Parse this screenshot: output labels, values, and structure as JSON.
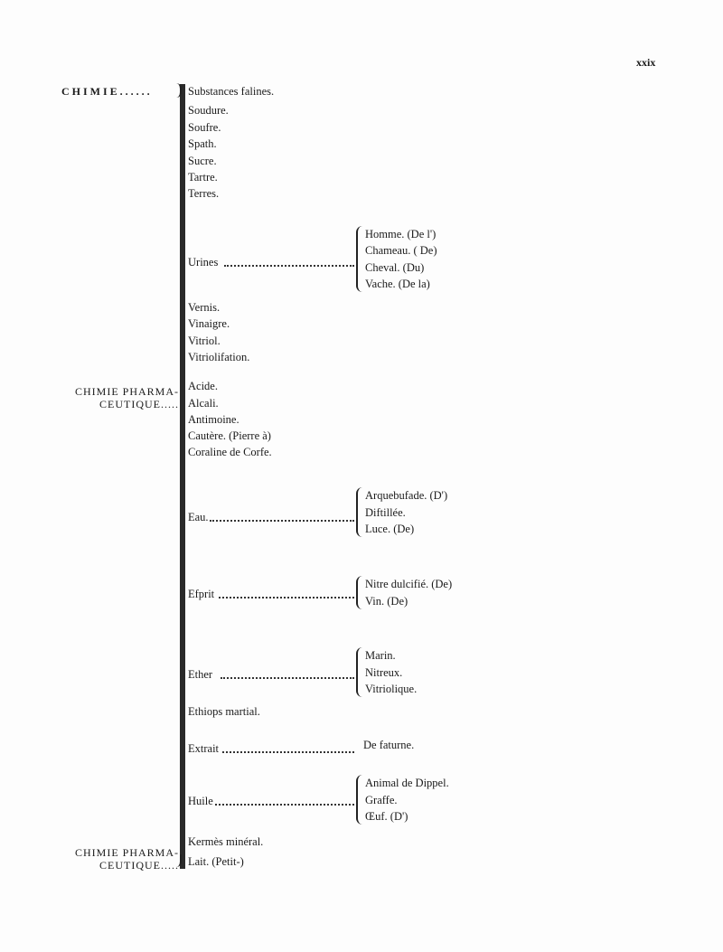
{
  "page_number": "xxix",
  "headings": [
    {
      "lines": [
        "CHIMIE......"
      ]
    },
    {
      "lines": [
        "CHIMIE PHARMA-",
        "CEUTIQUE....."
      ]
    },
    {
      "lines": [
        "CHIMIE PHARMA-",
        "CEUTIQUE....."
      ]
    }
  ],
  "entries": [
    {
      "label": "Substances falines."
    },
    {
      "label": "Soudure."
    },
    {
      "label": "Soufre."
    },
    {
      "label": "Spath."
    },
    {
      "label": "Sucre."
    },
    {
      "label": "Tartre."
    },
    {
      "label": "Terres."
    },
    {
      "label": "Urines",
      "subs": [
        "Homme. (De l')",
        "Chameau. ( De)",
        "Cheval. (Du)",
        "Vache. (De la)"
      ]
    },
    {
      "label": "Vernis."
    },
    {
      "label": "Vinaigre."
    },
    {
      "label": "Vitriol."
    },
    {
      "label": "Vitriolifation."
    },
    {
      "label": "Acide."
    },
    {
      "label": "Alcali."
    },
    {
      "label": "Antimoine."
    },
    {
      "label": "Cautère. (Pierre à)"
    },
    {
      "label": "Coraline de Corfe."
    },
    {
      "label": "Eau.",
      "subs": [
        "Arquebufade. (D')",
        "Diftillée.",
        "Luce. (De)"
      ]
    },
    {
      "label": "Efprit",
      "subs": [
        "Nitre dulcifié. (De)",
        "Vin. (De)"
      ]
    },
    {
      "label": "Ether",
      "subs": [
        "Marin.",
        "Nitreux.",
        "Vitriolique."
      ]
    },
    {
      "label": "Ethiops martial."
    },
    {
      "label": "Extrait",
      "subs": [
        "De faturne."
      ]
    },
    {
      "label": "Huile",
      "subs": [
        "Animal de Dippel.",
        "Graffe.",
        "Œuf. (D')"
      ]
    },
    {
      "label": "Kermès minéral."
    },
    {
      "label": "Lait. (Petit-)"
    }
  ]
}
